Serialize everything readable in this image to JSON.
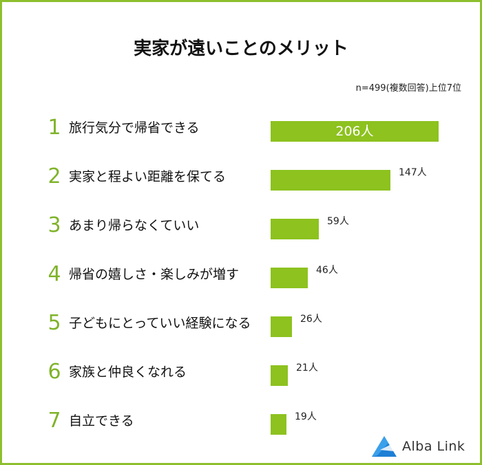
{
  "title": "実家が遠いことのメリット",
  "subtitle": "n=499(複数回答)上位7位",
  "brand": {
    "name": "Alba Link",
    "logo_icon": "triangle-logo-icon"
  },
  "colors": {
    "bar": "#8dc21f",
    "rank": "#7fb32a",
    "frame": "#8dbf2e"
  },
  "chart_data": {
    "type": "bar",
    "orientation": "horizontal",
    "title": "実家が遠いことのメリット",
    "subtitle": "n=499(複数回答)上位7位",
    "ranks": [
      "1",
      "2",
      "3",
      "4",
      "5",
      "6",
      "7"
    ],
    "categories": [
      "旅行気分で帰省できる",
      "実家と程よい距離を保てる",
      "あまり帰らなくていい",
      "帰省の嬉しさ・楽しみが増す",
      "子どもにとっていい経験になる",
      "家族と仲良くなれる",
      "自立できる"
    ],
    "values": [
      206,
      147,
      59,
      46,
      26,
      21,
      19
    ],
    "value_labels": [
      "206人",
      "147人",
      "59人",
      "46人",
      "26人",
      "21人",
      "19人"
    ],
    "unit": "人"
  }
}
